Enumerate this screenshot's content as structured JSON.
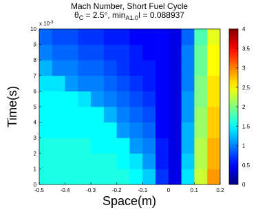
{
  "chart_data": {
    "type": "heatmap",
    "title": "Mach Number, Short Fuel Cycle",
    "subtitle_parts": [
      {
        "text": "θ"
      },
      {
        "text": "C",
        "sub": true
      },
      {
        "text": " = 2.5°, min"
      },
      {
        "text": "A1.0",
        "sub": true
      },
      {
        "text": "I = 0.088937"
      }
    ],
    "x_label": "Space(m)",
    "y_label": "Time(s)",
    "y_multiplier": {
      "base": "x 10",
      "exponent": "-3"
    },
    "xlim": [
      -0.5,
      0.2
    ],
    "xticks": [
      -0.5,
      -0.4,
      -0.3,
      -0.2,
      -0.1,
      0,
      0.1,
      0.2
    ],
    "ylim": [
      0,
      10
    ],
    "yticks": [
      0,
      1,
      2,
      3,
      4,
      5,
      6,
      7,
      8,
      9,
      10
    ],
    "clim": [
      0,
      4
    ],
    "cticks": [
      0,
      0.5,
      1,
      1.5,
      2,
      2.5,
      3,
      3.5,
      4
    ],
    "colormap": "jet",
    "x": [
      -0.475,
      -0.425,
      -0.375,
      -0.325,
      -0.275,
      -0.225,
      -0.175,
      -0.125,
      -0.075,
      -0.025,
      0.025,
      0.075,
      0.125,
      0.175
    ],
    "y": [
      0.5,
      1.5,
      2.5,
      3.5,
      4.5,
      5.5,
      6.5,
      7.5,
      8.5,
      9.5
    ],
    "z": [
      [
        1.6,
        1.6,
        1.6,
        1.6,
        1.6,
        1.6,
        1.6,
        1.5,
        1.3,
        0.7,
        0.4,
        1.4,
        2.3,
        2.9
      ],
      [
        1.6,
        1.6,
        1.6,
        1.6,
        1.6,
        1.6,
        1.5,
        1.4,
        1.1,
        0.6,
        0.4,
        1.3,
        2.2,
        2.8
      ],
      [
        1.6,
        1.6,
        1.6,
        1.6,
        1.5,
        1.5,
        1.5,
        1.1,
        1.0,
        0.6,
        0.4,
        1.2,
        2.2,
        2.8
      ],
      [
        1.5,
        1.5,
        1.5,
        1.5,
        1.5,
        1.5,
        1.1,
        1.0,
        0.9,
        0.5,
        0.4,
        1.2,
        2.1,
        2.7
      ],
      [
        1.5,
        1.5,
        1.5,
        1.5,
        1.5,
        1.2,
        1.0,
        0.9,
        0.8,
        0.5,
        0.4,
        1.1,
        2.1,
        2.7
      ],
      [
        1.5,
        1.5,
        1.5,
        1.4,
        1.1,
        1.0,
        0.9,
        0.8,
        0.7,
        0.5,
        0.4,
        1.1,
        2.0,
        2.6
      ],
      [
        1.4,
        1.4,
        1.1,
        1.0,
        1.0,
        0.9,
        0.8,
        0.7,
        0.6,
        0.5,
        0.4,
        1.0,
        2.0,
        2.6
      ],
      [
        1.2,
        1.0,
        1.0,
        0.9,
        0.9,
        0.8,
        0.7,
        0.6,
        0.6,
        0.5,
        0.4,
        1.0,
        1.9,
        2.5
      ],
      [
        1.0,
        0.9,
        0.9,
        0.8,
        0.8,
        0.7,
        0.7,
        0.6,
        0.5,
        0.5,
        0.4,
        1.0,
        1.9,
        2.5
      ],
      [
        0.9,
        0.8,
        0.8,
        0.7,
        0.7,
        0.6,
        0.6,
        0.5,
        0.5,
        0.5,
        0.4,
        0.9,
        1.8,
        2.4
      ]
    ]
  }
}
